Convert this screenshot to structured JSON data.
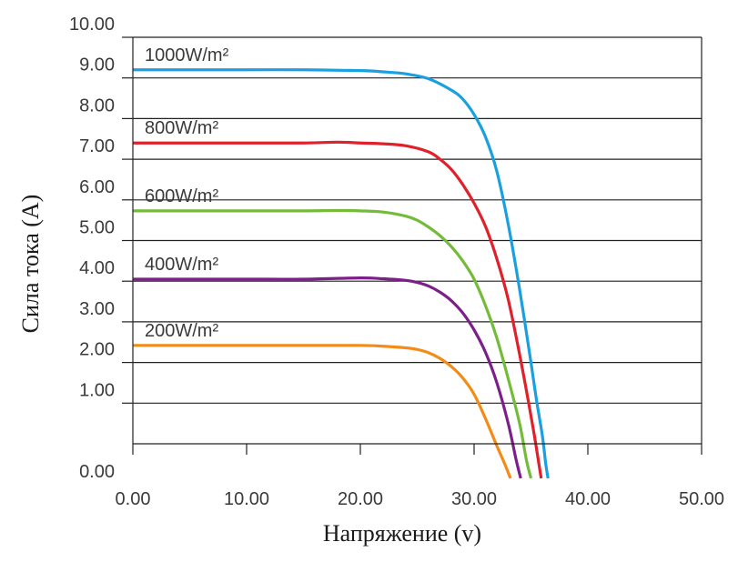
{
  "chart_data": {
    "type": "line",
    "xlabel": "Напряжение (v)",
    "ylabel": "Сила тока (A)",
    "xlim": [
      0,
      50
    ],
    "ylim": [
      0,
      10
    ],
    "xticks": [
      "0.00",
      "10.00",
      "20.00",
      "30.00",
      "40.00",
      "50.00"
    ],
    "yticks": [
      "0.00",
      "1.00",
      "2.00",
      "3.00",
      "4.00",
      "5.00",
      "6.00",
      "7.00",
      "8.00",
      "9.00",
      "10.00"
    ],
    "grid": "horizontal",
    "series": [
      {
        "name": "1000W/m²",
        "color": "#1aa0e0",
        "x": [
          0,
          5,
          10,
          15,
          20,
          22,
          24,
          26,
          28,
          29,
          30,
          31,
          32,
          33,
          34,
          35,
          35.5,
          36,
          36.3,
          36.5
        ],
        "y": [
          9.2,
          9.2,
          9.2,
          9.2,
          9.18,
          9.15,
          9.1,
          8.98,
          8.7,
          8.48,
          8.1,
          7.55,
          6.7,
          5.4,
          3.8,
          2.0,
          1.05,
          0.2,
          -0.5,
          -0.85
        ]
      },
      {
        "name": "800W/m²",
        "color": "#e0202a",
        "x": [
          0,
          5,
          10,
          15,
          18,
          20,
          22,
          24,
          26,
          27,
          28,
          29,
          30,
          31,
          32,
          33,
          34,
          34.8,
          35.3,
          35.7,
          35.9
        ],
        "y": [
          7.4,
          7.4,
          7.4,
          7.4,
          7.42,
          7.4,
          7.38,
          7.33,
          7.18,
          7.0,
          6.75,
          6.38,
          5.92,
          5.35,
          4.55,
          3.55,
          2.2,
          1.0,
          0.2,
          -0.5,
          -0.85
        ]
      },
      {
        "name": "600W/m²",
        "color": "#74bb3a",
        "x": [
          0,
          5,
          10,
          15,
          18,
          20,
          22,
          24,
          25,
          26,
          27,
          28,
          29,
          30,
          31,
          32,
          33,
          34,
          34.6,
          35.0
        ],
        "y": [
          5.73,
          5.73,
          5.73,
          5.73,
          5.74,
          5.73,
          5.7,
          5.6,
          5.5,
          5.33,
          5.12,
          4.85,
          4.5,
          4.05,
          3.4,
          2.6,
          1.6,
          0.5,
          -0.4,
          -0.85
        ]
      },
      {
        "name": "400W/m²",
        "color": "#7d1f8a",
        "x": [
          0,
          5,
          10,
          15,
          20,
          22,
          24,
          25,
          26,
          27,
          28,
          29,
          30,
          31,
          32,
          33,
          33.7,
          34.1
        ],
        "y": [
          4.05,
          4.05,
          4.05,
          4.05,
          4.08,
          4.06,
          4.02,
          3.97,
          3.88,
          3.73,
          3.52,
          3.22,
          2.8,
          2.25,
          1.5,
          0.5,
          -0.4,
          -0.85
        ]
      },
      {
        "name": "200W/m²",
        "color": "#f28c16",
        "x": [
          0,
          5,
          10,
          15,
          20,
          22,
          24,
          25,
          26,
          27,
          28,
          29,
          30,
          31,
          32,
          32.7,
          33.2
        ],
        "y": [
          2.42,
          2.42,
          2.42,
          2.42,
          2.42,
          2.4,
          2.36,
          2.32,
          2.24,
          2.1,
          1.9,
          1.62,
          1.22,
          0.62,
          -0.05,
          -0.5,
          -0.85
        ]
      }
    ]
  }
}
